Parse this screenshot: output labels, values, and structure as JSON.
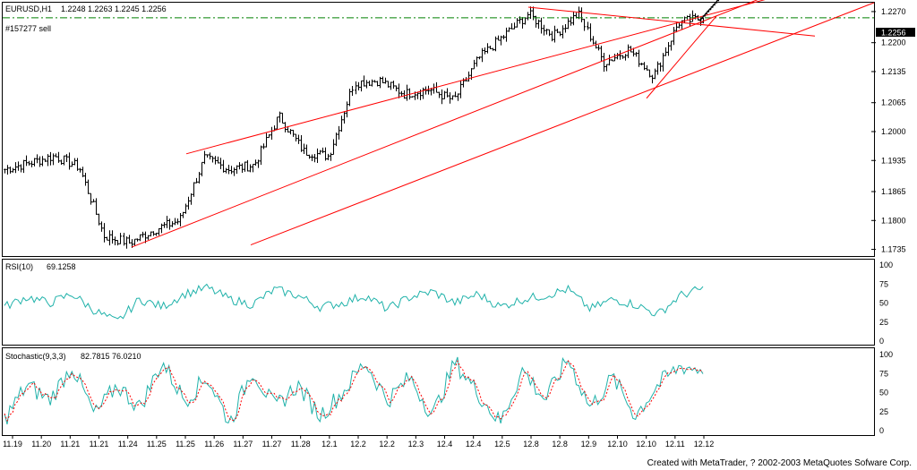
{
  "footer": "Created with MetaTrader, ? 2002-2003 MetaQuotes Sofware Corp.",
  "chart_data": [
    {
      "type": "candlestick-bars",
      "title": "EURUSD,H1",
      "ohlc_label": "1.2248 1.2263 1.2245 1.2256",
      "order_label": "#157277 sell",
      "order_price": 1.2256,
      "current_price_label": "1.2256",
      "y_ticks": [
        1.227,
        1.22,
        1.2135,
        1.2065,
        1.2,
        1.1935,
        1.1865,
        1.18,
        1.1735
      ],
      "y_tick_labels": [
        "1.2270",
        "1.2200",
        "1.2135",
        "1.2065",
        "1.2000",
        "1.1935",
        "1.1865",
        "1.1800",
        "1.1735"
      ],
      "ylim": [
        1.172,
        1.229
      ],
      "bar_color": "#000000",
      "trendline_color": "#ff0000",
      "order_line_color": "#008000",
      "x_labels": [
        "11.19",
        "11.20",
        "11.21",
        "11.21",
        "11.24",
        "11.25",
        "11.25",
        "11.26",
        "11.27",
        "11.27",
        "11.28",
        "12.1",
        "12.2",
        "12.2",
        "12.3",
        "12.4",
        "12.4",
        "12.5",
        "12.8",
        "12.8",
        "12.9",
        "12.10",
        "12.10",
        "12.11",
        "12.12"
      ],
      "key_closes": [
        1.1915,
        1.193,
        1.1945,
        1.192,
        1.1765,
        1.175,
        1.178,
        1.18,
        1.194,
        1.1915,
        1.1925,
        1.2035,
        1.1955,
        1.1945,
        1.211,
        1.2115,
        1.2085,
        1.2095,
        1.207,
        1.2165,
        1.2215,
        1.2265,
        1.2215,
        1.2265,
        1.2155,
        1.2185,
        1.2125,
        1.2245,
        1.2256
      ]
    },
    {
      "type": "line",
      "title": "RSI(10)",
      "value_label": "69.1258",
      "y_ticks": [
        100,
        75,
        50,
        25,
        0
      ],
      "ylim": [
        0,
        100
      ],
      "line_color": "#20b2aa",
      "key_values": [
        45,
        58,
        50,
        62,
        40,
        25,
        55,
        45,
        62,
        70,
        55,
        48,
        68,
        60,
        45,
        50,
        60,
        42,
        58,
        65,
        50,
        62,
        45,
        55,
        60,
        68,
        42,
        55,
        48,
        35,
        60,
        69
      ]
    },
    {
      "type": "line",
      "title": "Stochastic(9,3,3)",
      "value_label": "82.7815 76.0210",
      "y_ticks": [
        100,
        75,
        50,
        25,
        0
      ],
      "ylim": [
        0,
        100
      ],
      "series": [
        {
          "name": "main",
          "color": "#20b2aa"
        },
        {
          "name": "signal",
          "color": "#ff0000",
          "style": "dashed"
        }
      ],
      "key_values": [
        15,
        60,
        40,
        85,
        20,
        60,
        30,
        90,
        40,
        70,
        10,
        80,
        30,
        60,
        20,
        50,
        90,
        40,
        70,
        20,
        90,
        50,
        10,
        80,
        40,
        95,
        30,
        70,
        20,
        60,
        85,
        80
      ]
    }
  ]
}
